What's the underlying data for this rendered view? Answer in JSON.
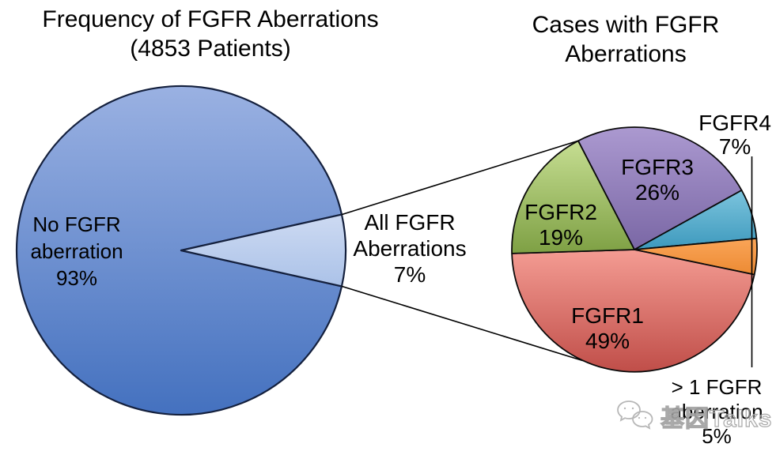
{
  "titles": {
    "left": {
      "line1": "Frequency of FGFR Aberrations",
      "line2": "(4853 Patients)"
    },
    "right": {
      "line1": "Cases with FGFR",
      "line2": "Aberrations"
    }
  },
  "watermark": {
    "icon": "wechat-bubbles-icon",
    "text": "基因Talks"
  },
  "chart_data": [
    {
      "type": "pie",
      "title": "Frequency of FGFR Aberrations (4853 Patients)",
      "n_patients": 4853,
      "slices": [
        {
          "label": "No FGFR aberration",
          "label_lines": [
            "No FGFR",
            "aberration"
          ],
          "pct": 93,
          "pct_label": "93%",
          "color": "#4F81BD",
          "fill_light": "#9AB1E2",
          "fill_dark": "#4471BF"
        },
        {
          "label": "All FGFR Aberrations",
          "label_lines": [
            "All FGFR",
            "Aberrations"
          ],
          "pct": 7,
          "pct_label": "7%",
          "color": "#B9CCEC",
          "fill_light": "#CDDAF2",
          "fill_dark": "#ABC2E8"
        }
      ]
    },
    {
      "type": "pie",
      "title": "Cases with FGFR Aberrations",
      "slices": [
        {
          "label": "FGFR3",
          "pct": 26,
          "pct_label": "26%",
          "color": "#8064A2",
          "fill_light": "#AB99D0",
          "fill_dark": "#7A67A5"
        },
        {
          "label": "FGFR4",
          "pct": 7,
          "pct_label": "7%",
          "color": "#4BACC6",
          "fill_light": "#7CC4DD",
          "fill_dark": "#3D99BD"
        },
        {
          "label": "> 1 FGFR aberration",
          "label_lines": [
            "> 1 FGFR",
            "aberration"
          ],
          "pct": 5,
          "pct_label": "5%",
          "color": "#F79646",
          "fill_light": "#FAA558",
          "fill_dark": "#EC8A33"
        },
        {
          "label": "FGFR1",
          "pct": 49,
          "pct_label": "49%",
          "color": "#C0504D",
          "fill_light": "#F49C93",
          "fill_dark": "#C04E49"
        },
        {
          "label": "FGFR2",
          "pct": 19,
          "pct_label": "19%",
          "color": "#9BBB59",
          "fill_light": "#C6DE92",
          "fill_dark": "#7EA044"
        }
      ]
    }
  ]
}
